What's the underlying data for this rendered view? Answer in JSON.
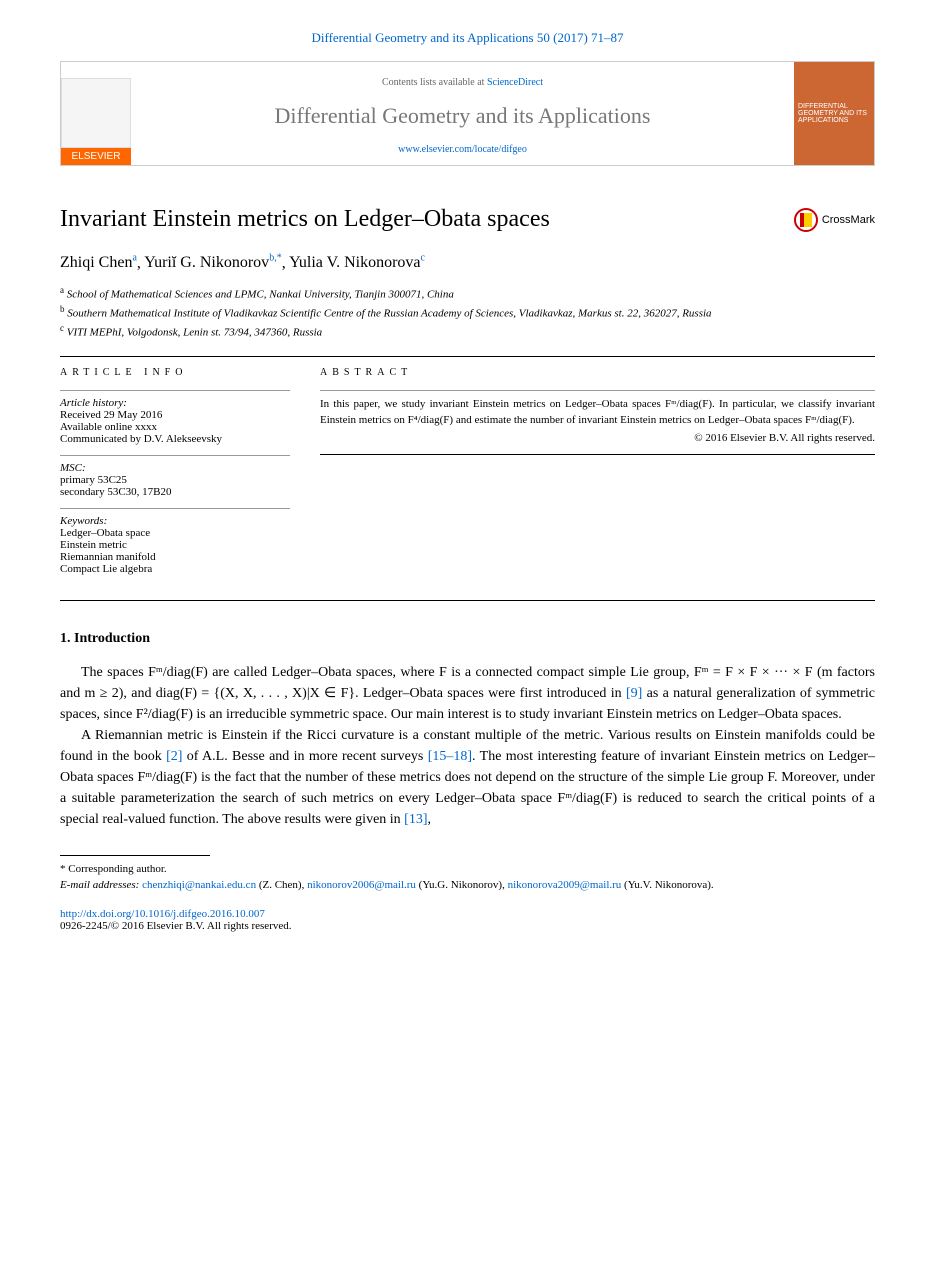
{
  "header": {
    "citation": "Differential Geometry and its Applications 50 (2017) 71–87",
    "contents_prefix": "Contents lists available at ",
    "contents_link": "ScienceDirect",
    "journal_name": "Differential Geometry and its Applications",
    "journal_url": "www.elsevier.com/locate/difgeo",
    "elsevier": "ELSEVIER",
    "cover_text": "DIFFERENTIAL GEOMETRY AND ITS APPLICATIONS"
  },
  "crossmark": "CrossMark",
  "title": "Invariant Einstein metrics on Ledger–Obata spaces",
  "authors": [
    {
      "name": "Zhiqi Chen",
      "sup": "a"
    },
    {
      "name": "Yuriĭ G. Nikonorov",
      "sup": "b,*"
    },
    {
      "name": "Yulia V. Nikonorova",
      "sup": "c"
    }
  ],
  "affiliations": [
    {
      "label": "a",
      "text": "School of Mathematical Sciences and LPMC, Nankai University, Tianjin 300071, China"
    },
    {
      "label": "b",
      "text": "Southern Mathematical Institute of Vladikavkaz Scientific Centre of the Russian Academy of Sciences, Vladikavkaz, Markus st. 22, 362027, Russia"
    },
    {
      "label": "c",
      "text": "VITI MEPhI, Volgodonsk, Lenin st. 73/94, 347360, Russia"
    }
  ],
  "article_info": {
    "heading": "article info",
    "history_title": "Article history:",
    "history": [
      "Received 29 May 2016",
      "Available online xxxx",
      "Communicated by D.V. Alekseevsky"
    ],
    "msc_title": "MSC:",
    "msc": [
      "primary 53C25",
      "secondary 53C30, 17B20"
    ],
    "keywords_title": "Keywords:",
    "keywords": [
      "Ledger–Obata space",
      "Einstein metric",
      "Riemannian manifold",
      "Compact Lie algebra"
    ]
  },
  "abstract": {
    "heading": "abstract",
    "text": "In this paper, we study invariant Einstein metrics on Ledger–Obata spaces Fᵐ/diag(F). In particular, we classify invariant Einstein metrics on F⁴/diag(F) and estimate the number of invariant Einstein metrics on Ledger–Obata spaces Fᵐ/diag(F).",
    "copyright": "© 2016 Elsevier B.V. All rights reserved."
  },
  "section1": {
    "heading": "1. Introduction",
    "para1_pre": "The spaces Fᵐ/diag(F) are called Ledger–Obata spaces, where F is a connected compact simple Lie group, Fᵐ = F × F × ··· × F (m factors and m ≥ 2), and diag(F) = {(X, X, . . . , X)|X ∈ F}. Ledger–Obata spaces were first introduced in ",
    "para1_ref1": "[9]",
    "para1_post": " as a natural generalization of symmetric spaces, since F²/diag(F) is an irreducible symmetric space. Our main interest is to study invariant Einstein metrics on Ledger–Obata spaces.",
    "para2_pre": "A Riemannian metric is Einstein if the Ricci curvature is a constant multiple of the metric. Various results on Einstein manifolds could be found in the book ",
    "para2_ref1": "[2]",
    "para2_mid1": " of A.L. Besse and in more recent surveys ",
    "para2_ref2": "[15–18]",
    "para2_mid2": ". The most interesting feature of invariant Einstein metrics on Ledger–Obata spaces Fᵐ/diag(F) is the fact that the number of these metrics does not depend on the structure of the simple Lie group F. Moreover, under a suitable parameterization the search of such metrics on every Ledger–Obata space Fᵐ/diag(F) is reduced to search the critical points of a special real-valued function. The above results were given in ",
    "para2_ref3": "[13]",
    "para2_end": ","
  },
  "footnotes": {
    "corresponding": "* Corresponding author.",
    "email_label": "E-mail addresses: ",
    "emails": [
      {
        "addr": "chenzhiqi@nankai.edu.cn",
        "who": "(Z. Chen)"
      },
      {
        "addr": "nikonorov2006@mail.ru",
        "who": "(Yu.G. Nikonorov)"
      },
      {
        "addr": "nikonorova2009@mail.ru",
        "who": "(Yu.V. Nikonorova)."
      }
    ]
  },
  "footer": {
    "doi": "http://dx.doi.org/10.1016/j.difgeo.2016.10.007",
    "issn": "0926-2245/© 2016 Elsevier B.V. All rights reserved."
  }
}
